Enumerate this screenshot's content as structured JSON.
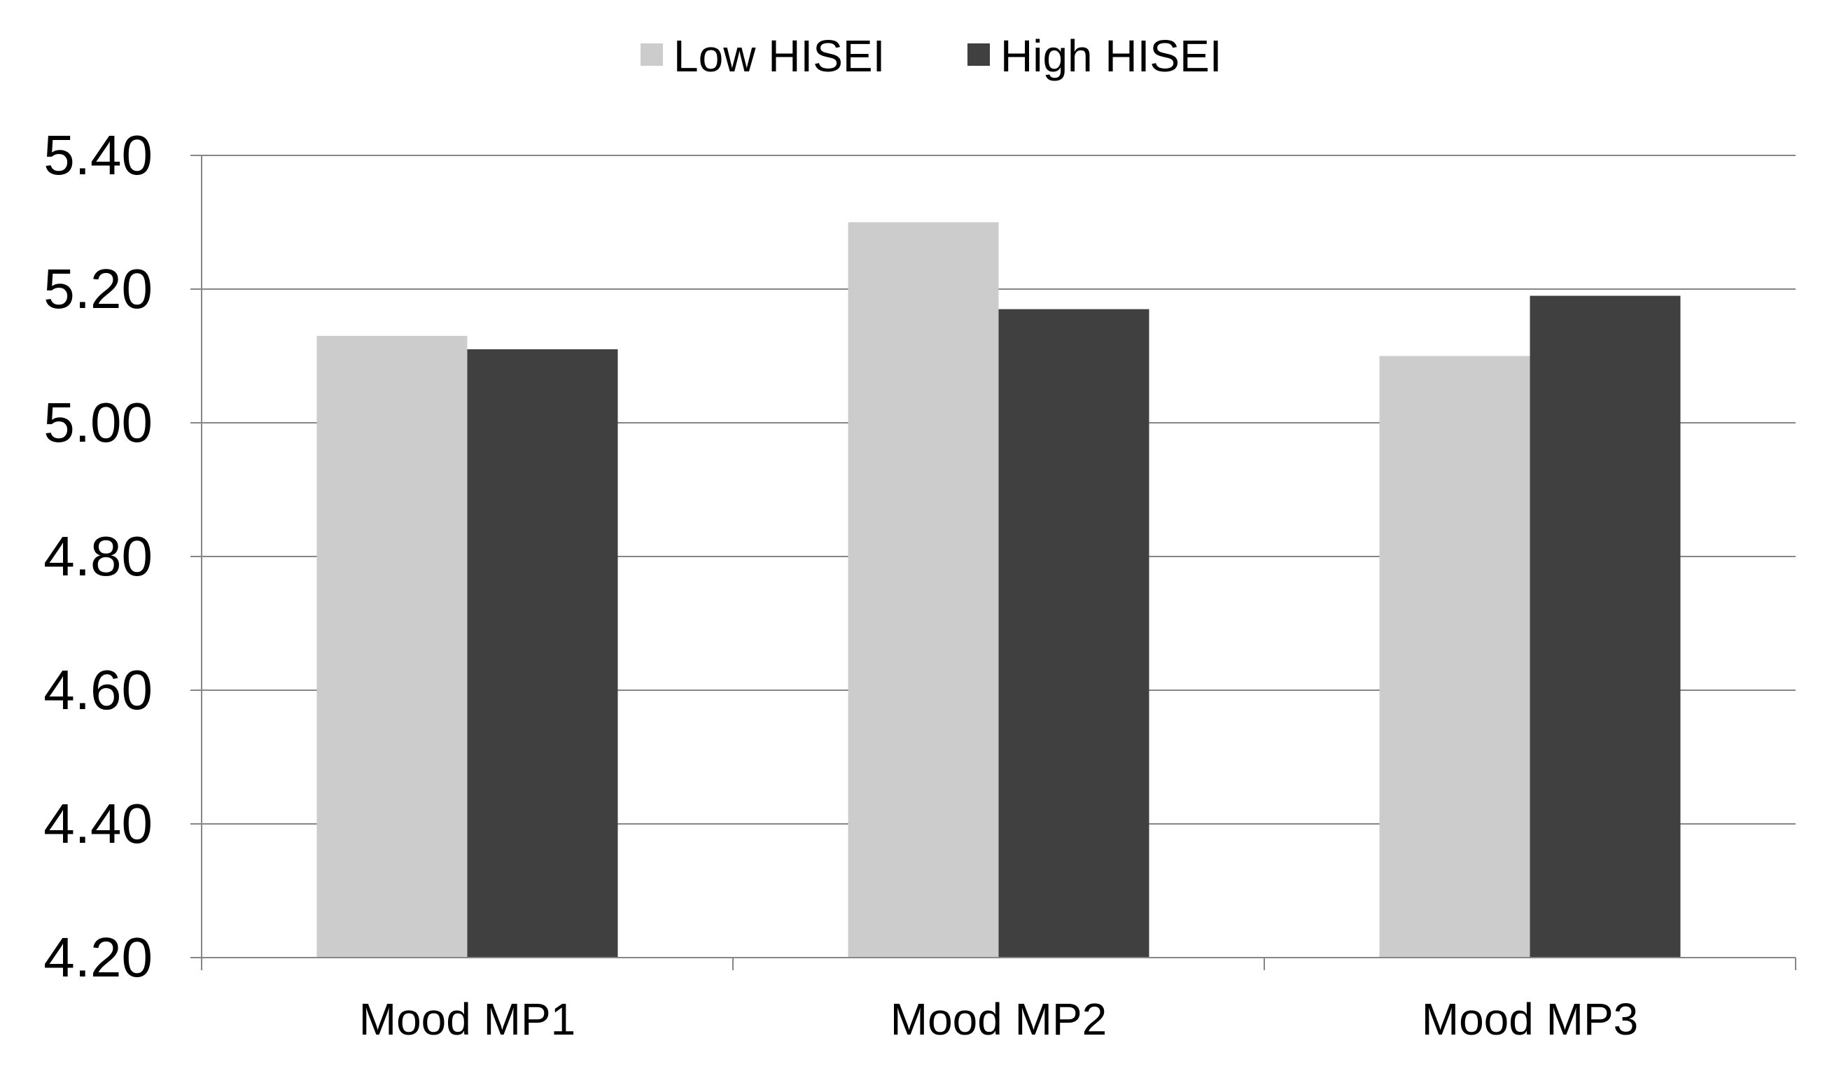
{
  "chart_data": {
    "type": "bar",
    "categories": [
      "Mood MP1",
      "Mood MP2",
      "Mood MP3"
    ],
    "series": [
      {
        "name": "Low HISEI",
        "color": "#cccccc",
        "values": [
          5.13,
          5.3,
          5.1
        ]
      },
      {
        "name": "High HISEI",
        "color": "#404040",
        "values": [
          5.11,
          5.17,
          5.19
        ]
      }
    ],
    "ylim": [
      4.2,
      5.4
    ],
    "yticks": [
      "4.20",
      "4.40",
      "4.60",
      "4.80",
      "5.00",
      "5.20",
      "5.40"
    ],
    "grid": true,
    "legend_position": "top-center",
    "gridline_color": "#868686",
    "axis_color": "#868686"
  }
}
